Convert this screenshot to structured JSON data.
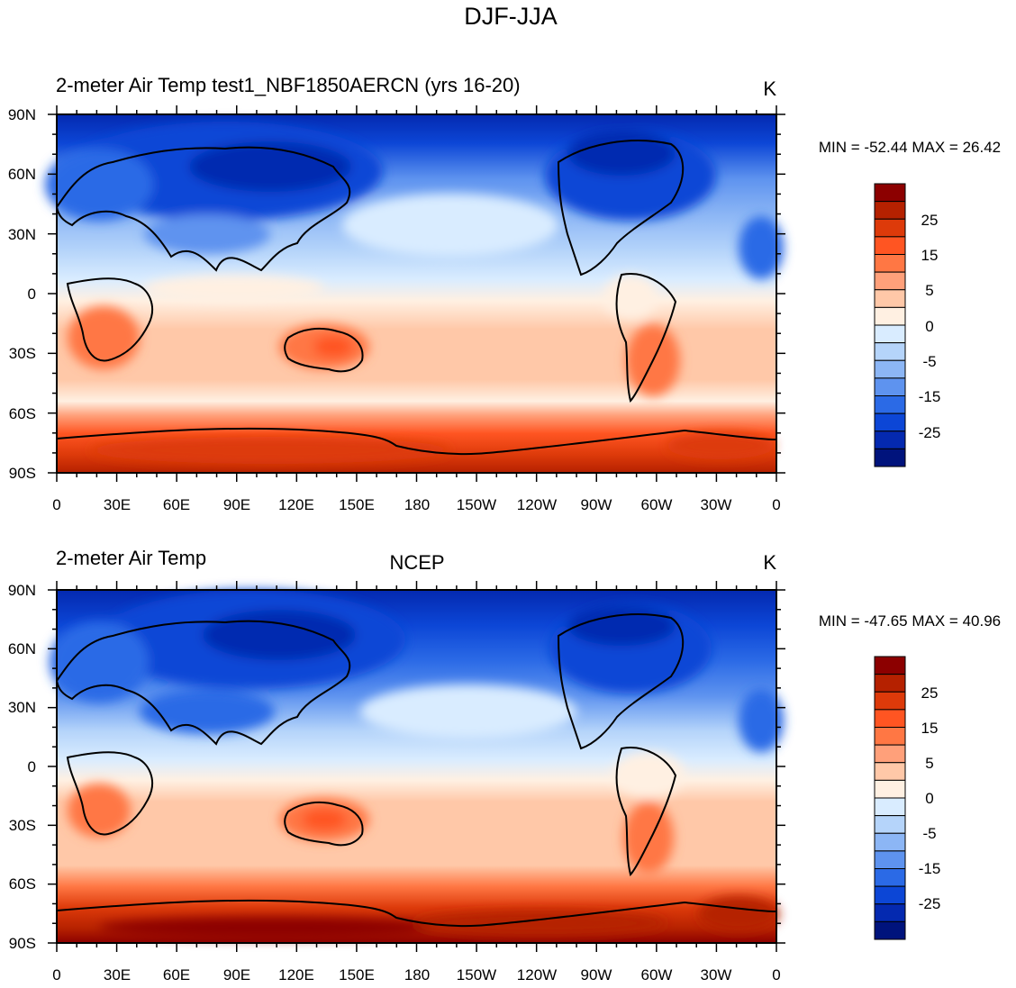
{
  "figure_title": "DJF-JJA",
  "colorbar": {
    "labels": [
      "25",
      "15",
      "5",
      "0",
      "-5",
      "-15",
      "-25"
    ],
    "colors": [
      "#8c0000",
      "#b52100",
      "#dd3a0a",
      "#ff5522",
      "#ff7744",
      "#ffa07a",
      "#ffc8a8",
      "#fff0e2",
      "#d9ecff",
      "#b5d4fa",
      "#8cb6f5",
      "#5e93ef",
      "#2b6ae6",
      "#0c46d6",
      "#0429b0",
      "#00137c"
    ]
  },
  "x_ticks": [
    "0",
    "30E",
    "60E",
    "90E",
    "120E",
    "150E",
    "180",
    "150W",
    "120W",
    "90W",
    "60W",
    "30W",
    "0"
  ],
  "y_ticks": [
    "90N",
    "60N",
    "30N",
    "0",
    "30S",
    "60S",
    "90S"
  ],
  "panels": [
    {
      "left_title": "2-meter Air Temp  test1_NBF1850AERCN (yrs 16-20)",
      "center_title": "",
      "units": "K",
      "stats": "MIN = -52.44 MAX =  26.42"
    },
    {
      "left_title": "2-meter Air Temp",
      "center_title": "NCEP",
      "units": "K",
      "stats": "MIN = -47.65 MAX =  40.96"
    }
  ]
}
